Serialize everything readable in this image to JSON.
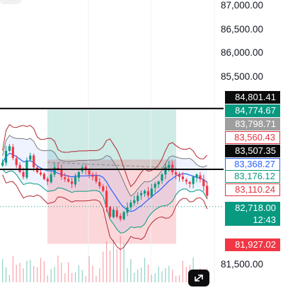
{
  "chart": {
    "price_axis_labels": [
      "87,000.00",
      "86,500.00",
      "86,000.00",
      "85,500.00",
      "81,500.00"
    ],
    "close_button_icon": "close-icon",
    "expand_button_icon": "expand-arrows-icon"
  },
  "price_tags": {
    "line_high": "84,801.41",
    "take_profit": "84,774.67",
    "bb_upper_a": "83,798.71",
    "bb_upper_b": "83,560.43",
    "line_low": "83,507.35",
    "bb_mid": "83,368.27",
    "bb_lower_a": "83,176.12",
    "bb_lower_b": "83,110.24",
    "current_price": "82,718.00",
    "countdown": "12:43",
    "stop_loss": "81,927.02"
  },
  "colors": {
    "up": "#089981",
    "down": "#f23645",
    "bb_fill": "#2962ff",
    "mid": "#2962ff",
    "outer_band": "#b22833"
  },
  "chart_data": {
    "type": "candlestick",
    "y_axis_visible_range": [
      81400,
      87100
    ],
    "horizontal_lines": [
      84801.41,
      83507.35
    ],
    "long_position": {
      "entry": 83507.35,
      "take_profit": 84774.67,
      "stop_loss": 81927.02
    },
    "current_price": 82718.0,
    "closes": [
      83650,
      83900,
      84000,
      83750,
      83600,
      83450,
      83350,
      83700,
      83800,
      83550,
      83450,
      83400,
      83300,
      83250,
      83400,
      83550,
      83500,
      83350,
      83300,
      83250,
      83200,
      83350,
      83450,
      83550,
      83500,
      83400,
      83350,
      83250,
      83150,
      83050,
      82700,
      82500,
      82650,
      82500,
      82450,
      82600,
      82700,
      82800,
      82850,
      82950,
      83000,
      83050,
      82950,
      83100,
      83200,
      83250,
      83400,
      83550,
      83600,
      83450,
      83400,
      83350,
      83300,
      83250,
      83200,
      83350,
      83400,
      83300,
      83150,
      82950
    ]
  }
}
